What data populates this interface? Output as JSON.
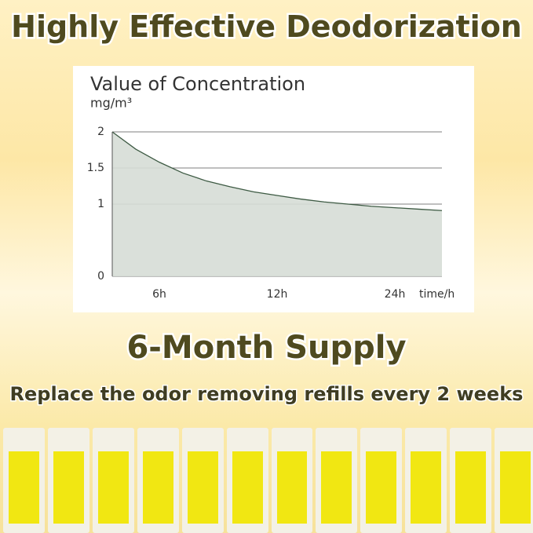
{
  "title": "Highly Effective Deodorization",
  "headline": "6-Month Supply",
  "subtitle": "Replace the odor removing refills every 2 weeks",
  "chart_data": {
    "type": "area",
    "title": "Value of Concentration",
    "ylabel": "mg/m³",
    "xlabel": "time/h",
    "categories": [
      null,
      null,
      "6h",
      null,
      null,
      null,
      null,
      "12h",
      null,
      null,
      null,
      null,
      "24h",
      null,
      null
    ],
    "values": [
      2.0,
      1.76,
      1.58,
      1.43,
      1.32,
      1.24,
      1.17,
      1.12,
      1.07,
      1.03,
      1.0,
      0.97,
      0.95,
      0.93,
      0.91
    ],
    "color": "#3d5a43",
    "fill": "#d6ddd6",
    "ylim": [
      0,
      2
    ],
    "yticks": [
      0,
      1,
      1.5,
      2
    ],
    "grid": true
  }
}
